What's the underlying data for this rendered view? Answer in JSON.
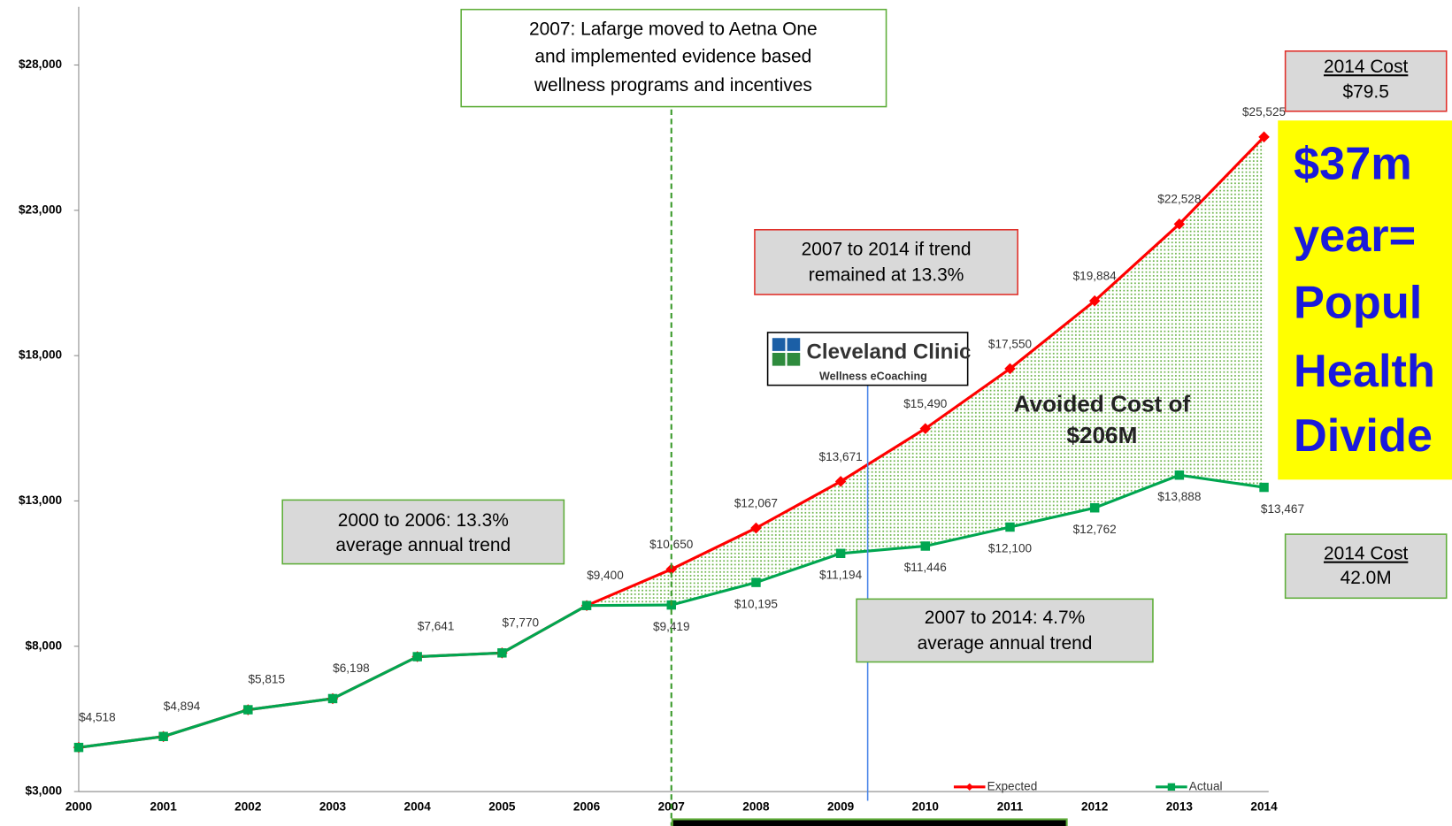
{
  "chart_data": {
    "type": "line",
    "categories": [
      "2000",
      "2001",
      "2002",
      "2003",
      "2004",
      "2005",
      "2006",
      "2007",
      "2008",
      "2009",
      "2010",
      "2011",
      "2012",
      "2013",
      "2014"
    ],
    "ylim": [
      3000,
      30000
    ],
    "yticks": [
      {
        "value": 3000,
        "label": "$3,000"
      },
      {
        "value": 8000,
        "label": "$8,000"
      },
      {
        "value": 13000,
        "label": "$13,000"
      },
      {
        "value": 18000,
        "label": "$18,000"
      },
      {
        "value": 23000,
        "label": "$23,000"
      },
      {
        "value": 28000,
        "label": "$28,000"
      }
    ],
    "series": [
      {
        "name": "Expected",
        "color": "#ff0000",
        "marker": "diamond",
        "values": [
          4518,
          4894,
          5815,
          6198,
          7641,
          7770,
          9400,
          10650,
          12067,
          13671,
          15490,
          17550,
          19884,
          22528,
          25525
        ],
        "value_labels": [
          "$4,518",
          "$4,894",
          "$5,815",
          "$6,198",
          "$7,641",
          "$7,770",
          "$9,400",
          "$10,650",
          "$12,067",
          "$13,671",
          "$15,490",
          "$17,550",
          "$19,884",
          "$22,528",
          "$25,525"
        ]
      },
      {
        "name": "Actual",
        "color": "#00a650",
        "marker": "square",
        "values": [
          4518,
          4894,
          5815,
          6198,
          7641,
          7770,
          9400,
          9419,
          10195,
          11194,
          11446,
          12100,
          12762,
          13888,
          13467
        ],
        "value_labels": [
          null,
          null,
          null,
          null,
          null,
          null,
          null,
          "$9,419",
          "$10,195",
          "$11,194",
          "$11,446",
          "$12,100",
          "$12,762",
          "$13,888",
          "$13,467"
        ]
      }
    ],
    "legend": "bottom-right",
    "annotations": [
      {
        "lines": [
          "2007: Lafarge moved to Aetna One",
          "and implemented evidence based",
          "wellness programs and incentives"
        ]
      },
      {
        "lines": [
          "2007 to 2014 if trend",
          "remained at 13.3%"
        ]
      },
      {
        "lines": [
          "2000 to 2006: 13.3%",
          "average annual trend"
        ]
      },
      {
        "lines": [
          "2007 to 2014:  4.7%",
          "average annual trend"
        ]
      },
      {
        "lines": [
          "2014 Cost",
          "$79.5"
        ]
      },
      {
        "lines": [
          "2014 Cost",
          "42.0M"
        ]
      },
      {
        "lines": [
          "$37m",
          "year=",
          "Popul",
          "Health",
          "Divide"
        ]
      },
      {
        "lines": [
          "Avoided Cost of",
          "$206M"
        ]
      }
    ],
    "logo": {
      "name": "Cleveland Clinic",
      "subtitle": "Wellness eCoaching"
    }
  }
}
